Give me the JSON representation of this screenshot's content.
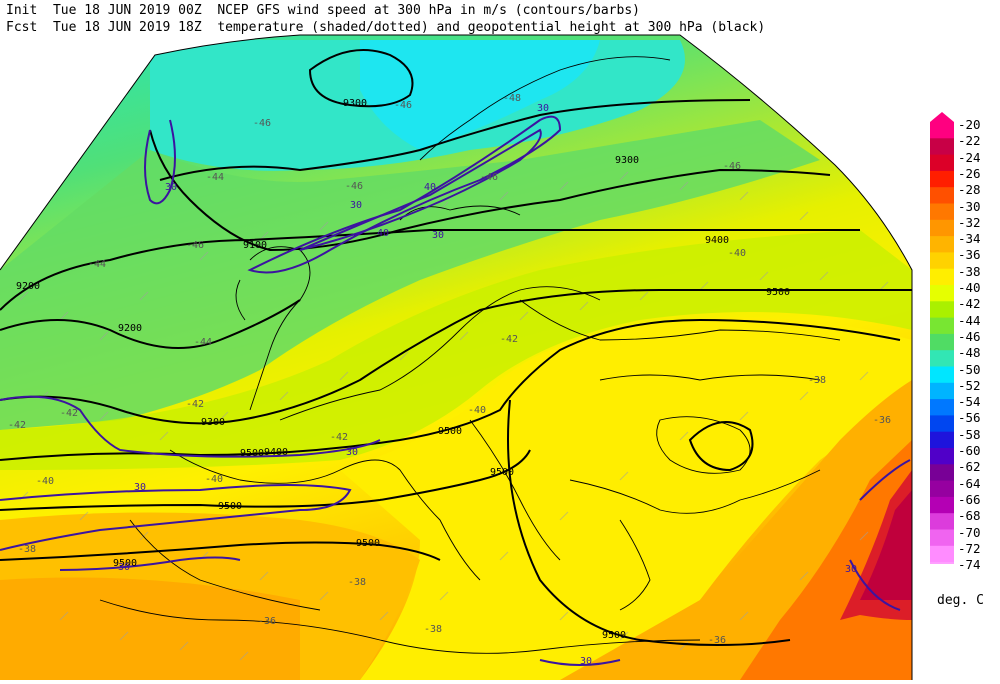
{
  "header": {
    "line1_left": "Init  Tue 18 JUN 2019 00Z",
    "line1_right": "NCEP GFS wind speed at 300 hPa in m/s (contours/barbs)",
    "line2_left": "Fcst  Tue 18 JUN 2019 18Z",
    "line2_right": "temperature (shaded/dotted) and geopotential height at 300 hPa (black)"
  },
  "colorbar": {
    "labels": [
      "-20",
      "-22",
      "-24",
      "-26",
      "-28",
      "-30",
      "-32",
      "-34",
      "-36",
      "-38",
      "-40",
      "-42",
      "-44",
      "-46",
      "-48",
      "-50",
      "-52",
      "-54",
      "-56",
      "-58",
      "-60",
      "-62",
      "-64",
      "-66",
      "-68",
      "-70",
      "-72",
      "-74"
    ],
    "colors": [
      "#ff0080",
      "#c80046",
      "#dc0028",
      "#ff1e00",
      "#ff5000",
      "#ff7800",
      "#ff9600",
      "#ffb400",
      "#ffd200",
      "#ffee00",
      "#e6ff00",
      "#aaf000",
      "#78e632",
      "#50dc64",
      "#32e6b4",
      "#00e6ff",
      "#00b4ff",
      "#0078ff",
      "#0046f0",
      "#1e14dc",
      "#5000c8",
      "#780096",
      "#9600a0",
      "#b400b4",
      "#dc3cdc",
      "#f064f0",
      "#ff8cff",
      "#ffa0ff"
    ],
    "units": "deg. C"
  },
  "height_labels": [
    "9300",
    "9100",
    "9200",
    "9200",
    "9300",
    "9300",
    "9400",
    "9500",
    "9500",
    "9500",
    "9500",
    "9400",
    "9500",
    "9500",
    "9500",
    "9500"
  ],
  "wind_labels": [
    "30",
    "30",
    "40",
    "40",
    "30",
    "30",
    "30",
    "30",
    "30",
    "30",
    "30"
  ],
  "temp_labels": [
    "-46",
    "-48",
    "-46",
    "-44",
    "-46",
    "-44",
    "-46",
    "-46",
    "-46",
    "-44",
    "-42",
    "-42",
    "-42",
    "-42",
    "-42",
    "-40",
    "-40",
    "-38",
    "-36",
    "-36",
    "-38",
    "-38",
    "-36",
    "-38",
    "-40",
    "-40"
  ]
}
